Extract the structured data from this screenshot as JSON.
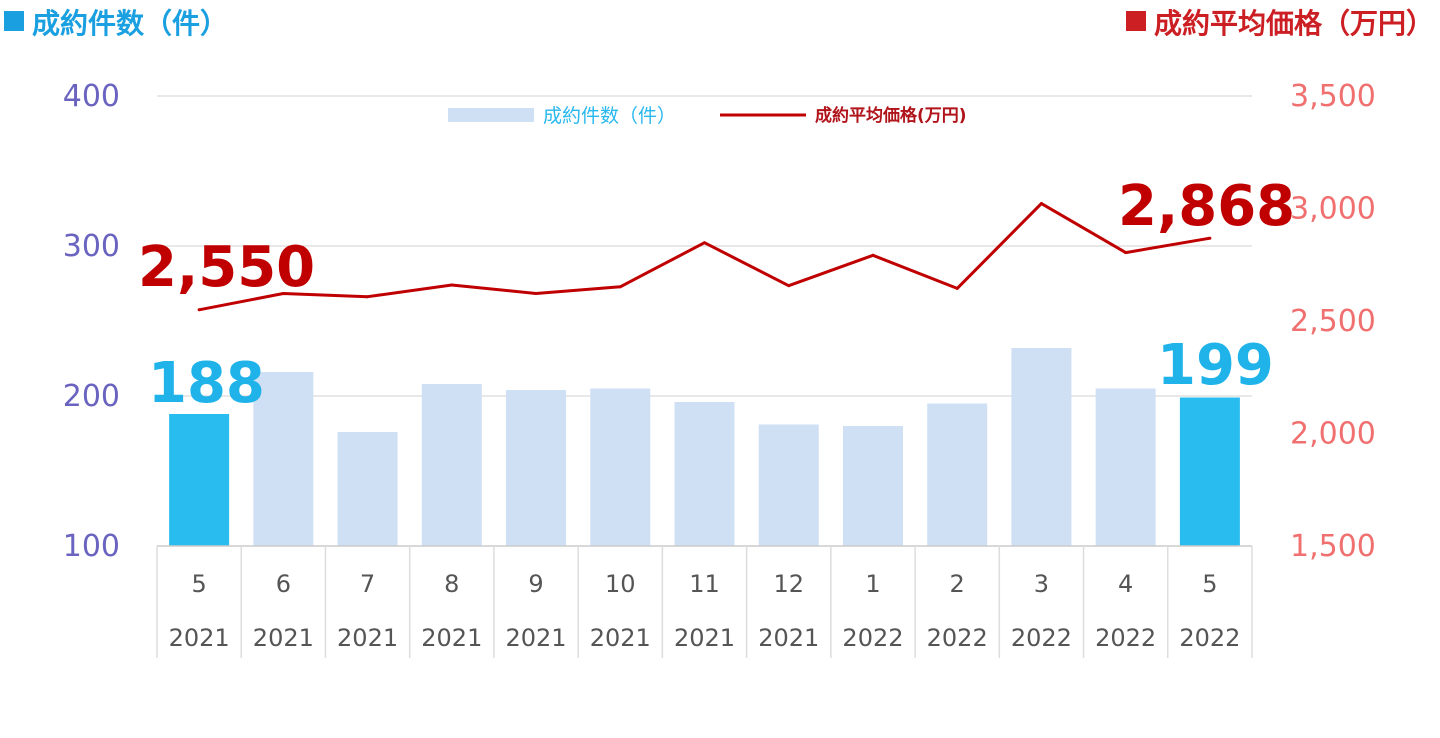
{
  "headers": {
    "left": "成約件数（件）",
    "right": "成約平均価格（万円）"
  },
  "legend": {
    "bars": "成約件数（件）",
    "line": "成約平均価格(万円)"
  },
  "colors": {
    "bar": "#cfdff4",
    "bar_highlight": "#29bdef",
    "line": "#c00000",
    "left_axis": "#6a64c0",
    "right_axis": "#f07070"
  },
  "chart_data": {
    "type": "bar",
    "categories": [
      {
        "month": "5",
        "year": "2021"
      },
      {
        "month": "6",
        "year": "2021"
      },
      {
        "month": "7",
        "year": "2021"
      },
      {
        "month": "8",
        "year": "2021"
      },
      {
        "month": "9",
        "year": "2021"
      },
      {
        "month": "10",
        "year": "2021"
      },
      {
        "month": "11",
        "year": "2021"
      },
      {
        "month": "12",
        "year": "2021"
      },
      {
        "month": "1",
        "year": "2022"
      },
      {
        "month": "2",
        "year": "2022"
      },
      {
        "month": "3",
        "year": "2022"
      },
      {
        "month": "4",
        "year": "2022"
      },
      {
        "month": "5",
        "year": "2022"
      }
    ],
    "series": [
      {
        "name": "成約件数（件）",
        "type": "bar",
        "axis": "left",
        "values": [
          188,
          216,
          176,
          208,
          204,
          205,
          196,
          181,
          180,
          195,
          232,
          205,
          199
        ],
        "highlight": [
          0,
          12
        ]
      },
      {
        "name": "成約平均価格(万円)",
        "type": "line",
        "axis": "right",
        "values": [
          2550,
          2622,
          2608,
          2660,
          2622,
          2652,
          2848,
          2657,
          2792,
          2645,
          3022,
          2804,
          2868
        ]
      }
    ],
    "left_axis": {
      "min": 100,
      "max": 400,
      "ticks": [
        "100",
        "200",
        "300",
        "400"
      ]
    },
    "right_axis": {
      "min": 1500,
      "max": 3500,
      "ticks": [
        "1,500",
        "2,000",
        "2,500",
        "3,000",
        "3,500"
      ]
    },
    "callouts": {
      "line_first": "2,550",
      "line_last": "2,868",
      "bar_first": "188",
      "bar_last": "199"
    },
    "grid": true,
    "legend_position": "top-center"
  }
}
